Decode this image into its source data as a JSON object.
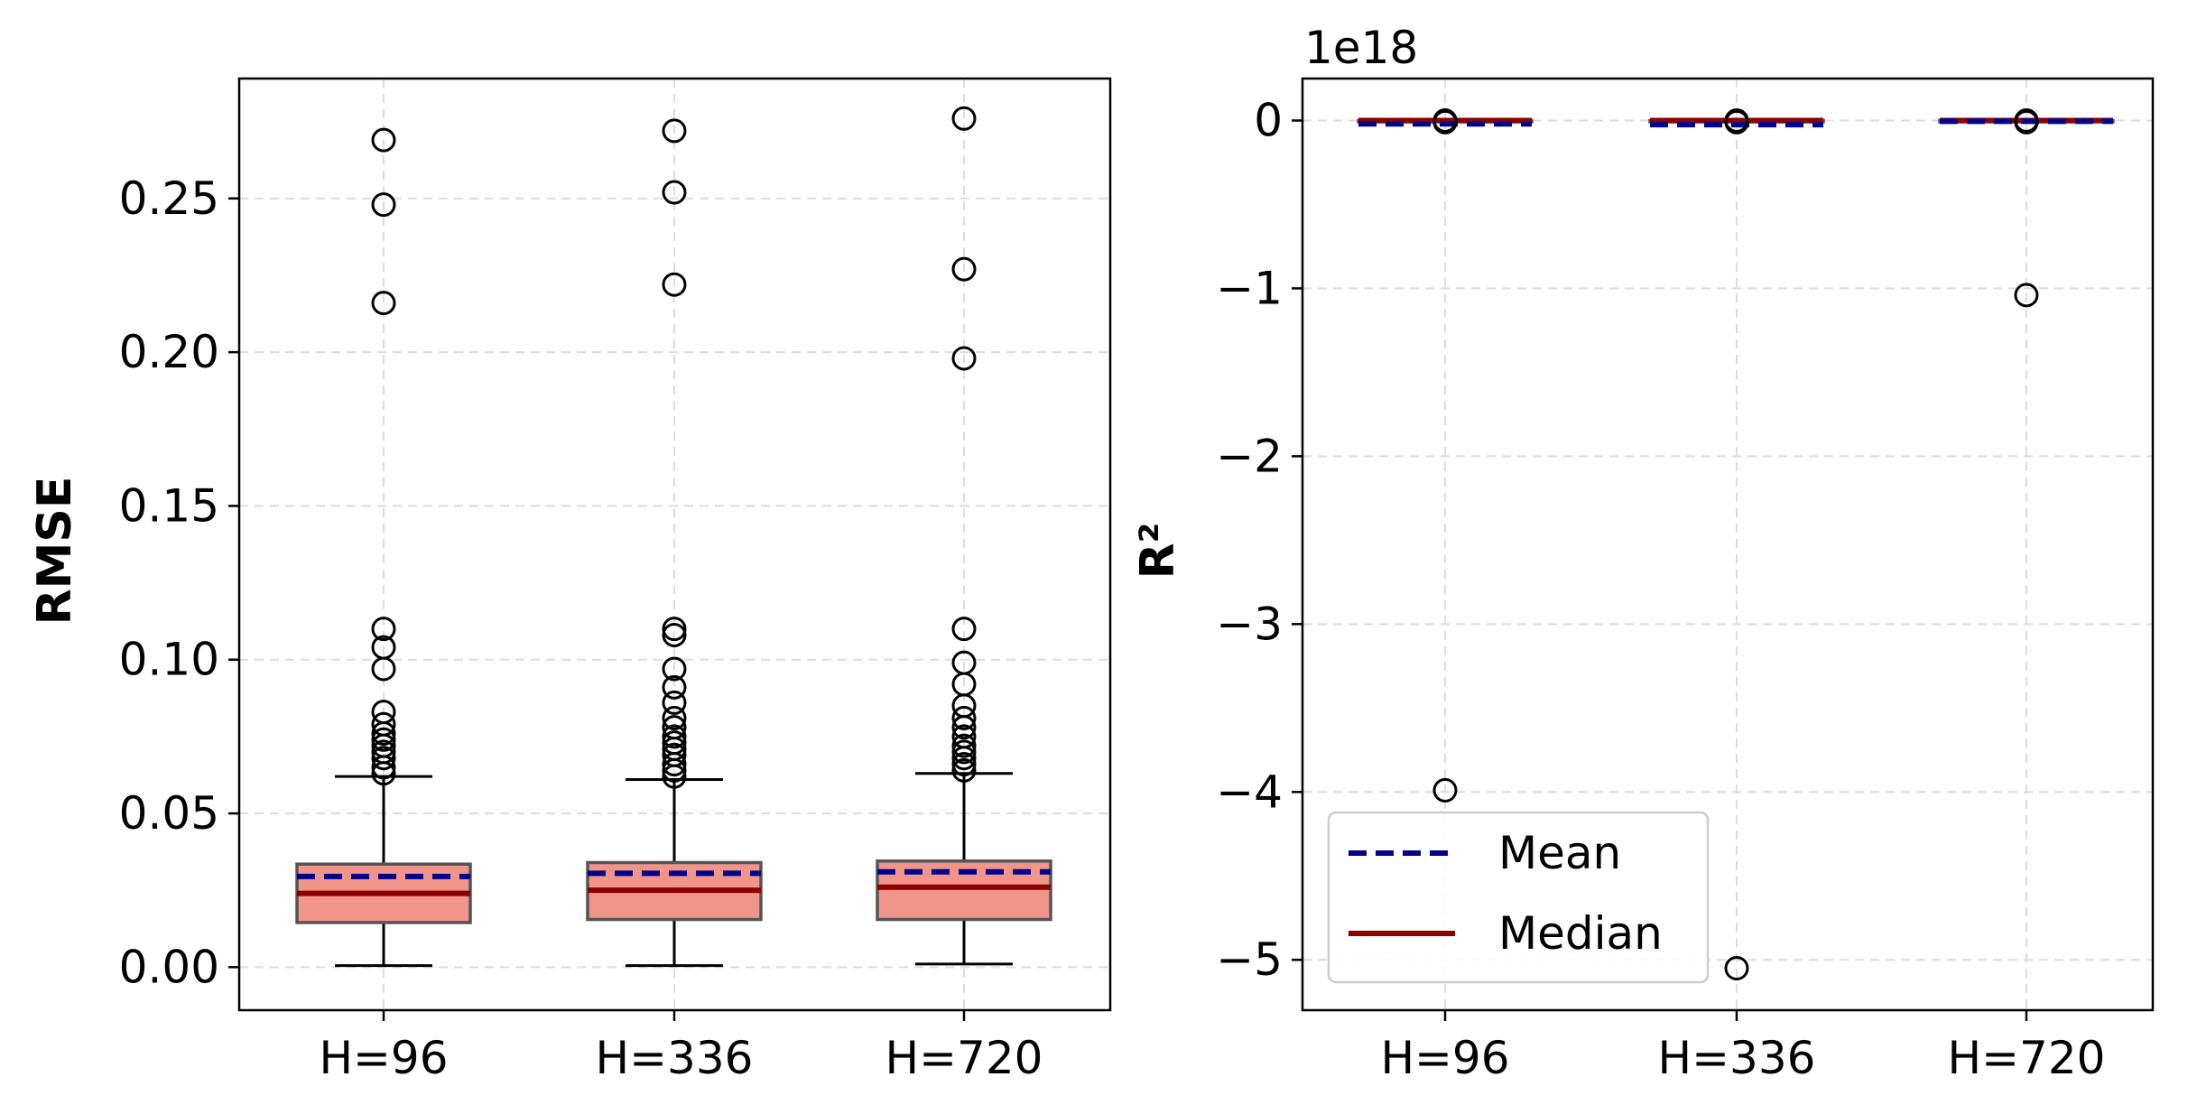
{
  "colors": {
    "box_fill": "#f1948a",
    "box_edge": "#555555",
    "mean": "#00008b",
    "median": "#8b0000",
    "grid": "#dddddd"
  },
  "chart_data": [
    {
      "type": "box",
      "ylabel": "RMSE",
      "categories": [
        "H=96",
        "H=336",
        "H=720"
      ],
      "ylim": [
        -0.014,
        0.289
      ],
      "yticks": [
        0.0,
        0.05,
        0.1,
        0.15,
        0.2,
        0.25
      ],
      "ytick_labels": [
        "0.00",
        "0.05",
        "0.10",
        "0.15",
        "0.20",
        "0.25"
      ],
      "grid": true,
      "boxes": [
        {
          "whisker_low": 0.0005,
          "q1": 0.0145,
          "median": 0.024,
          "mean": 0.0295,
          "q3": 0.0335,
          "whisker_high": 0.062,
          "outliers": [
            0.063,
            0.065,
            0.068,
            0.07,
            0.072,
            0.074,
            0.076,
            0.079,
            0.083,
            0.097,
            0.104,
            0.11,
            0.216,
            0.248,
            0.269
          ]
        },
        {
          "whisker_low": 0.0005,
          "q1": 0.0155,
          "median": 0.025,
          "mean": 0.0305,
          "q3": 0.034,
          "whisker_high": 0.061,
          "outliers": [
            0.062,
            0.064,
            0.066,
            0.069,
            0.071,
            0.073,
            0.075,
            0.078,
            0.081,
            0.086,
            0.091,
            0.097,
            0.108,
            0.11,
            0.222,
            0.252,
            0.272
          ]
        },
        {
          "whisker_low": 0.001,
          "q1": 0.0155,
          "median": 0.026,
          "mean": 0.031,
          "q3": 0.0345,
          "whisker_high": 0.063,
          "outliers": [
            0.064,
            0.066,
            0.068,
            0.07,
            0.072,
            0.075,
            0.078,
            0.081,
            0.085,
            0.092,
            0.099,
            0.11,
            0.198,
            0.227,
            0.276
          ]
        }
      ]
    },
    {
      "type": "box",
      "ylabel": "R²",
      "offset_text": "1e18",
      "categories": [
        "H=96",
        "H=336",
        "H=720"
      ],
      "ylim": [
        -5.3,
        0.25
      ],
      "yticks": [
        0,
        -1,
        -2,
        -3,
        -4,
        -5
      ],
      "ytick_labels": [
        "0",
        "−1",
        "−2",
        "−3",
        "−4",
        "−5"
      ],
      "grid": true,
      "legend": {
        "position": "lower-left",
        "entries": [
          "Mean",
          "Median"
        ]
      },
      "boxes": [
        {
          "whisker_low": 0,
          "q1": 0,
          "median": 0,
          "mean": -0.02,
          "q3": 0,
          "whisker_high": 0,
          "outliers": [
            0,
            -0.01,
            -3.99
          ]
        },
        {
          "whisker_low": 0,
          "q1": 0,
          "median": 0,
          "mean": -0.025,
          "q3": 0,
          "whisker_high": 0,
          "outliers": [
            0,
            -0.01,
            -5.05
          ]
        },
        {
          "whisker_low": 0,
          "q1": 0,
          "median": 0,
          "mean": -0.005,
          "q3": 0,
          "whisker_high": 0,
          "outliers": [
            0,
            -0.01,
            -1.04
          ]
        }
      ]
    }
  ]
}
